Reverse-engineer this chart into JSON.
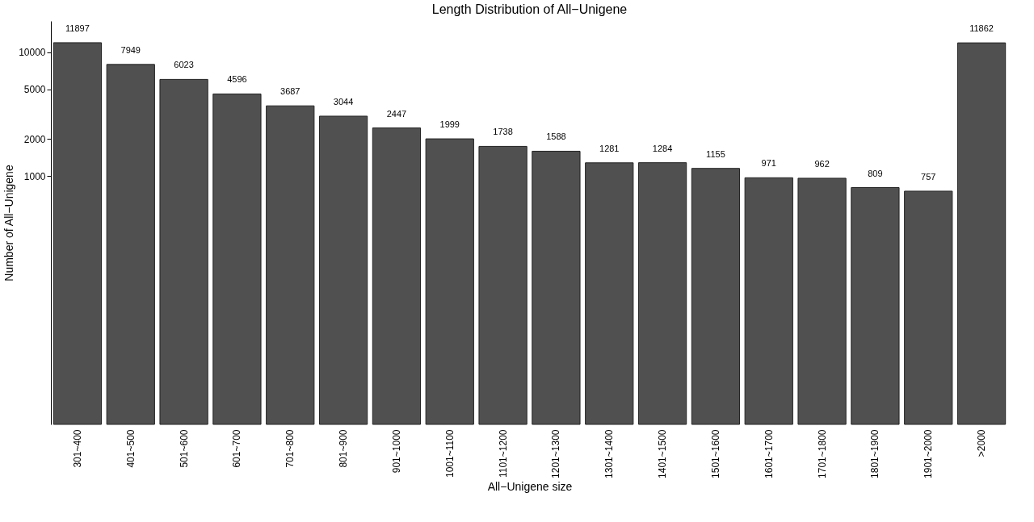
{
  "chart_data": {
    "type": "bar",
    "title": "Length Distribution of All−Unigene",
    "xlabel": "All−Unigene size",
    "ylabel": "Number of All−Unigene",
    "categories": [
      "301~400",
      "401~500",
      "501~600",
      "601~700",
      "701~800",
      "801~900",
      "901~1000",
      "1001~1100",
      "1101~1200",
      "1201~1300",
      "1301~1400",
      "1401~1500",
      "1501~1600",
      "1601~1700",
      "1701~1800",
      "1801~1900",
      "1901~2000",
      ">2000"
    ],
    "values": [
      11897,
      7949,
      6023,
      4596,
      3687,
      3044,
      2447,
      1999,
      1738,
      1588,
      1281,
      1284,
      1155,
      971,
      962,
      809,
      757,
      11862
    ],
    "color": "#505050",
    "log": true,
    "ylim": [
      10,
      17800
    ],
    "yticks": [
      1000,
      2000,
      5000,
      10000
    ],
    "grid": false,
    "data_labels": true
  }
}
